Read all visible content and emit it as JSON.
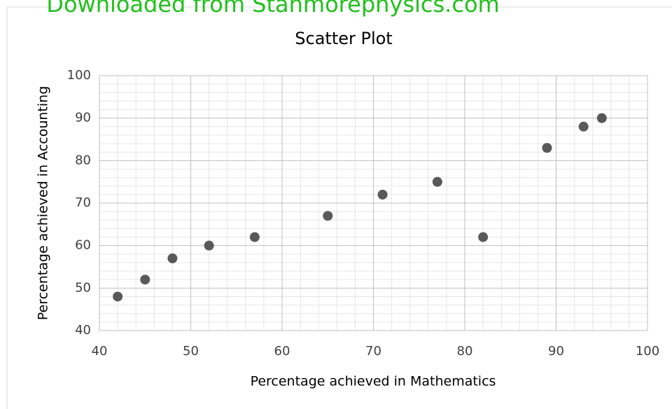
{
  "chart_data": {
    "type": "scatter",
    "title": "Scatter Plot",
    "watermark": "Downloaded from Stanmorephysics.com",
    "x_label": "Percentage achieved in Mathematics",
    "y_label": "Percentage achieved in Accounting",
    "x": [
      42,
      45,
      48,
      52,
      57,
      65,
      71,
      77,
      82,
      89,
      93,
      95
    ],
    "values": [
      48,
      52,
      57,
      60,
      62,
      67,
      72,
      75,
      62,
      83,
      88,
      90
    ],
    "color": "#595959",
    "xlim": [
      40,
      100
    ],
    "xticks": [
      40,
      50,
      60,
      70,
      80,
      90,
      100
    ],
    "ylim": [
      40,
      100
    ],
    "yticks": [
      40,
      50,
      60,
      70,
      80,
      90,
      100
    ],
    "grid": true,
    "minor_grid": true
  }
}
